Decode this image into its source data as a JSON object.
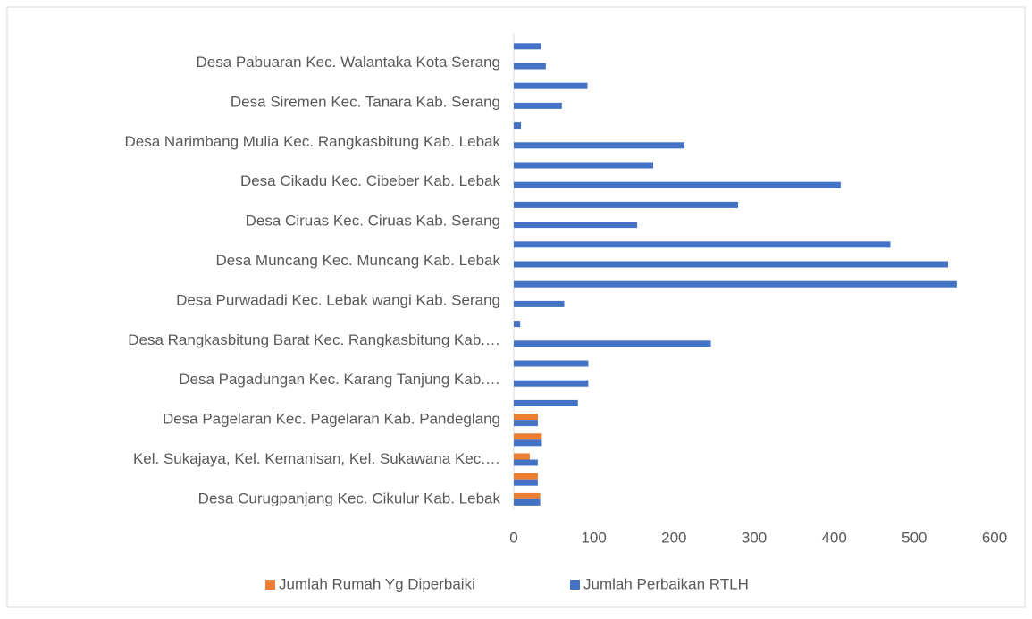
{
  "chart_data": {
    "type": "hbar",
    "categories": [
      "Desa Curugpanjang Kec. Cikulur Kab. Lebak",
      null,
      "Kel. Sukajaya, Kel. Kemanisan, Kel. Sukawana Kec.…",
      null,
      "Desa Pagelaran Kec. Pagelaran Kab. Pandeglang",
      null,
      "Desa Pagadungan Kec. Karang Tanjung Kab.…",
      null,
      "Desa Rangkasbitung Barat Kec. Rangkasbitung Kab.…",
      null,
      "Desa Purwadadi Kec. Lebak wangi Kab. Serang",
      null,
      "Desa Muncang Kec. Muncang Kab. Lebak",
      null,
      "Desa Ciruas Kec. Ciruas Kab. Serang",
      null,
      "Desa Cikadu Kec. Cibeber Kab. Lebak",
      null,
      "Desa Narimbang Mulia Kec. Rangkasbitung Kab. Lebak",
      null,
      "Desa Siremen Kec. Tanara Kab. Serang",
      null,
      "Desa Pabuaran Kec. Walantaka Kota Serang",
      null
    ],
    "series": [
      {
        "name": "Jumlah Rumah Yg Diperbaiki",
        "color": "#ed7d31",
        "values": [
          33,
          30,
          20,
          35,
          30,
          null,
          null,
          null,
          null,
          null,
          null,
          null,
          null,
          null,
          null,
          null,
          null,
          null,
          null,
          null,
          null,
          null,
          null,
          null
        ]
      },
      {
        "name": "Jumlah Perbaikan RTLH",
        "color": "#4472c4",
        "values": [
          33,
          30,
          30,
          35,
          30,
          80,
          93,
          93,
          246,
          8,
          63,
          553,
          542,
          470,
          154,
          280,
          408,
          174,
          213,
          9,
          60,
          92,
          40,
          34
        ]
      }
    ],
    "xlim": [
      0,
      600
    ],
    "xticks": [
      0,
      100,
      200,
      300,
      400,
      500,
      600
    ],
    "grid": false,
    "legend": "bottom"
  }
}
